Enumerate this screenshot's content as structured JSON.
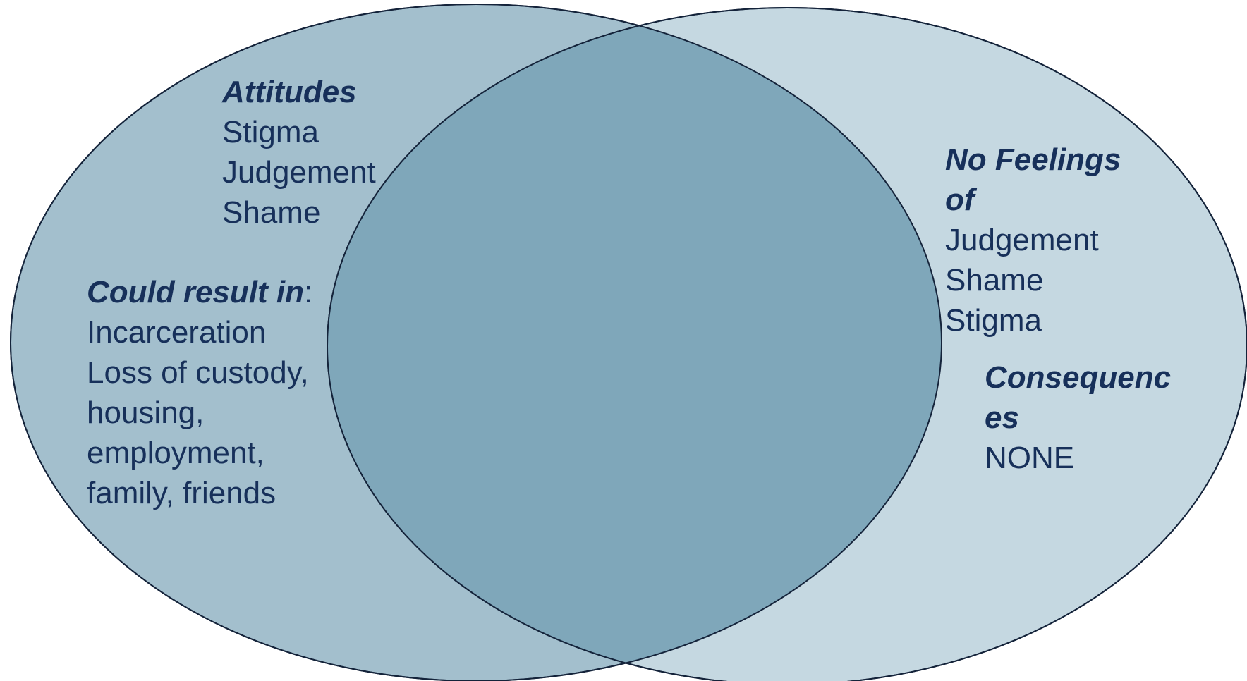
{
  "colors": {
    "left_circle_fill": "#a3bfcd",
    "right_circle_fill": "#c5d8e1",
    "overlap_fill": "#7fa7ba",
    "outline": "#14233a",
    "text": "#17305a"
  },
  "left_circle": {
    "attitudes": {
      "heading": "Attitudes",
      "items": [
        "Stigma",
        "Judgement",
        "Shame"
      ]
    },
    "result": {
      "heading": "Could result in",
      "heading_suffix": ":",
      "items": [
        "Incarceration",
        "Loss of custody,",
        "housing,",
        "employment,",
        "family, friends"
      ]
    }
  },
  "right_circle": {
    "no_feelings": {
      "heading_line1": "No Feelings",
      "heading_line2": "of",
      "items": [
        "Judgement",
        "Shame",
        "Stigma"
      ]
    },
    "consequences": {
      "heading_line1": "Consequenc",
      "heading_line2": "es",
      "items": [
        "NONE"
      ]
    }
  }
}
